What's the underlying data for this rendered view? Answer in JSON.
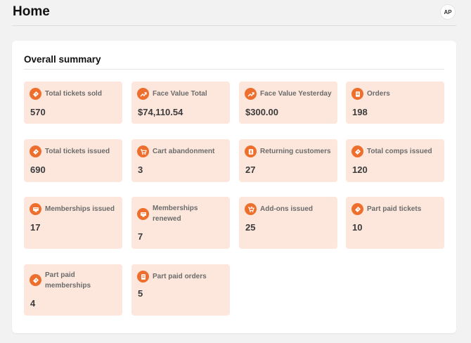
{
  "header": {
    "title": "Home",
    "avatar_initials": "AP"
  },
  "summary": {
    "title": "Overall summary",
    "accent_color": "#ee6f2d",
    "card_background": "#fde7dc",
    "cards": [
      {
        "label": "Total tickets sold",
        "value": "570",
        "icon": "ticket-icon"
      },
      {
        "label": "Face Value Total",
        "value": "$74,110.54",
        "icon": "trend-up-icon"
      },
      {
        "label": "Face Value Yesterday",
        "value": "$300.00",
        "icon": "trend-up-icon"
      },
      {
        "label": "Orders",
        "value": "198",
        "icon": "receipt-icon"
      },
      {
        "label": "Total tickets issued",
        "value": "690",
        "icon": "ticket-icon"
      },
      {
        "label": "Cart abandonment",
        "value": "3",
        "icon": "cart-icon"
      },
      {
        "label": "Returning customers",
        "value": "27",
        "icon": "id-badge-icon"
      },
      {
        "label": "Total comps issued",
        "value": "120",
        "icon": "ticket-icon"
      },
      {
        "label": "Memberships issued",
        "value": "17",
        "icon": "membership-icon"
      },
      {
        "label": "Memberships renewed",
        "value": "7",
        "icon": "membership-icon"
      },
      {
        "label": "Add-ons issued",
        "value": "25",
        "icon": "cart-plus-icon"
      },
      {
        "label": "Part paid tickets",
        "value": "10",
        "icon": "ticket-icon"
      },
      {
        "label": "Part paid memberships",
        "value": "4",
        "icon": "ticket-icon"
      },
      {
        "label": "Part paid orders",
        "value": "5",
        "icon": "receipt-icon"
      }
    ]
  }
}
